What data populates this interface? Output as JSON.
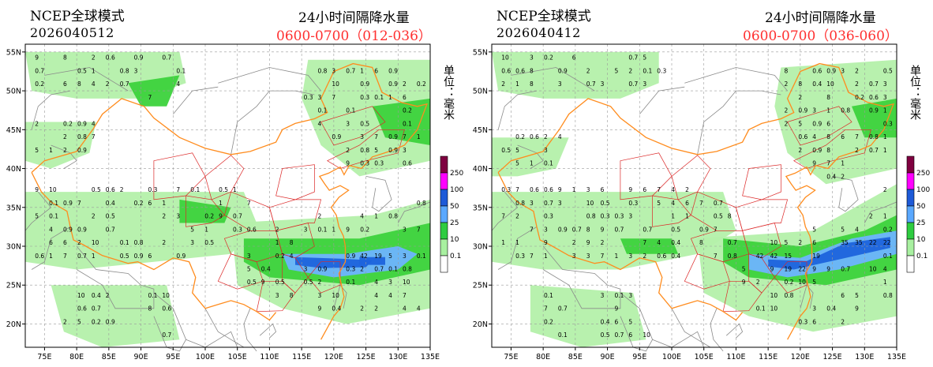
{
  "panels": [
    {
      "model": "NCEP全球模式",
      "run": "2026040512",
      "title": "24小时间隔降水量",
      "period": "0600-0700（012-036）",
      "unit": "单位：毫米"
    },
    {
      "model": "NCEP全球模式",
      "run": "2026040412",
      "title": "24小时间隔降水量",
      "period": "0600-0700（036-060）",
      "unit": "单位：毫米"
    }
  ],
  "map": {
    "lon_labels": [
      "75E",
      "80E",
      "85E",
      "90E",
      "95E",
      "100E",
      "105E",
      "110E",
      "115E",
      "120E",
      "125E",
      "130E",
      "135E"
    ],
    "lat_labels": [
      "55N",
      "50N",
      "45N",
      "40N",
      "35N",
      "30N",
      "25N",
      "20N"
    ]
  },
  "legend": {
    "levels": [
      "250",
      "100",
      "50",
      "25",
      "10",
      "0.1"
    ],
    "colors": [
      "#7f0040",
      "#ff00ff",
      "#1e5ad8",
      "#5aa8ff",
      "#2ecc40",
      "#a8f0a0",
      "#ffffff"
    ]
  },
  "colors": {
    "light_green": "#b4f0aa",
    "green": "#3cd23c",
    "light_blue": "#6eb4ff",
    "blue": "#1e64dc",
    "period_red": "#ff3030",
    "province_border": "#dc2828",
    "coast": "#ff8c1e",
    "country_border": "#8a8a8a"
  }
}
